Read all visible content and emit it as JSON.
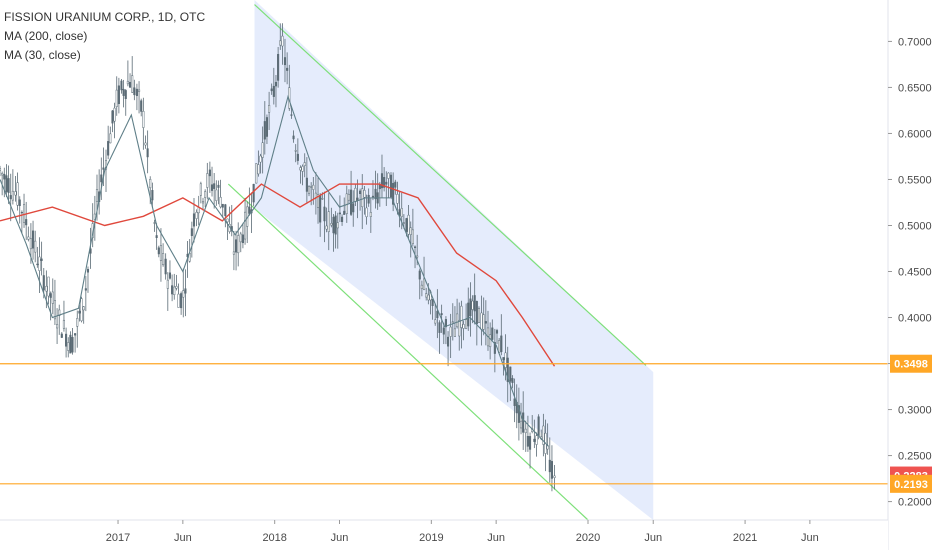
{
  "legend": {
    "title": "FISSION URANIUM CORP., 1D, OTC",
    "ma200": "MA (200, close)",
    "ma30": "MA (30, close)"
  },
  "colors": {
    "candle_up": "#5a6a74",
    "candle_down": "#5a6a74",
    "ma200": "#e0483c",
    "ma30": "#5f7f88",
    "channel_line": "#7ee07a",
    "channel_fill": "#dfe7fb",
    "horizontal": "#ffa726",
    "badge_last": "#ef5350",
    "badge_level": "#ffa726",
    "axis_bg": "#ffffff",
    "axis_line": "#e0e3eb"
  },
  "chart_data": {
    "type": "line",
    "ylim": [
      0.18,
      0.745
    ],
    "xlim": [
      "2016-04-01",
      "2021-11-30"
    ],
    "y_ticks": [
      "0.7000",
      "0.6500",
      "0.6000",
      "0.5500",
      "0.5000",
      "0.4500",
      "0.4000",
      "0.3500",
      "0.3000",
      "0.2500",
      "0.2000"
    ],
    "y_tick_values": [
      0.7,
      0.65,
      0.6,
      0.55,
      0.5,
      0.45,
      0.4,
      0.35,
      0.3,
      0.25,
      0.2
    ],
    "x_ticks": [
      {
        "label": "2017",
        "date": "2017-01-01"
      },
      {
        "label": "Jun",
        "date": "2017-06-01"
      },
      {
        "label": "2018",
        "date": "2018-01-01"
      },
      {
        "label": "Jun",
        "date": "2018-06-01"
      },
      {
        "label": "2019",
        "date": "2019-01-01"
      },
      {
        "label": "Jun",
        "date": "2019-06-01"
      },
      {
        "label": "2020",
        "date": "2020-01-01"
      },
      {
        "label": "Jun",
        "date": "2020-06-01"
      },
      {
        "label": "2021",
        "date": "2021-01-01"
      },
      {
        "label": "Jun",
        "date": "2021-06-01"
      }
    ],
    "price_series": {
      "name": "",
      "x": [
        "2016-04-01",
        "2016-05-15",
        "2016-07-01",
        "2016-08-15",
        "2016-09-15",
        "2016-10-15",
        "2016-11-15",
        "2017-01-01",
        "2017-02-01",
        "2017-03-01",
        "2017-04-01",
        "2017-05-01",
        "2017-06-01",
        "2017-07-01",
        "2017-08-01",
        "2017-09-01",
        "2017-10-01",
        "2017-11-01",
        "2017-12-01",
        "2018-01-01",
        "2018-01-20",
        "2018-02-15",
        "2018-03-15",
        "2018-04-15",
        "2018-05-15",
        "2018-06-15",
        "2018-07-15",
        "2018-08-15",
        "2018-09-15",
        "2018-10-15",
        "2018-11-15",
        "2018-12-15",
        "2019-01-15",
        "2019-02-15",
        "2019-03-15",
        "2019-04-15",
        "2019-05-15",
        "2019-06-15",
        "2019-07-15",
        "2019-08-15",
        "2019-09-15",
        "2019-10-15"
      ],
      "values": [
        0.56,
        0.53,
        0.46,
        0.4,
        0.37,
        0.42,
        0.53,
        0.64,
        0.66,
        0.62,
        0.48,
        0.44,
        0.42,
        0.52,
        0.55,
        0.53,
        0.47,
        0.51,
        0.58,
        0.65,
        0.7,
        0.6,
        0.55,
        0.52,
        0.5,
        0.52,
        0.53,
        0.52,
        0.55,
        0.53,
        0.49,
        0.43,
        0.4,
        0.38,
        0.4,
        0.41,
        0.38,
        0.37,
        0.31,
        0.27,
        0.28,
        0.22
      ]
    },
    "ma200_series": {
      "name": "MA (200, close)",
      "x": [
        "2016-04-01",
        "2016-08-01",
        "2016-12-01",
        "2017-03-01",
        "2017-06-01",
        "2017-09-01",
        "2017-12-01",
        "2018-03-01",
        "2018-06-01",
        "2018-09-01",
        "2018-12-01",
        "2019-03-01",
        "2019-06-01",
        "2019-08-01",
        "2019-10-15"
      ],
      "values": [
        0.505,
        0.52,
        0.5,
        0.51,
        0.53,
        0.505,
        0.545,
        0.52,
        0.545,
        0.545,
        0.53,
        0.47,
        0.44,
        0.4,
        0.347
      ]
    },
    "ma30_series": {
      "name": "MA (30, close)",
      "x": [
        "2016-04-01",
        "2016-06-01",
        "2016-08-01",
        "2016-10-01",
        "2016-12-01",
        "2017-02-01",
        "2017-04-01",
        "2017-06-01",
        "2017-08-01",
        "2017-10-01",
        "2017-12-01",
        "2018-02-01",
        "2018-04-01",
        "2018-06-01",
        "2018-08-01",
        "2018-10-01",
        "2018-12-01",
        "2019-02-01",
        "2019-04-01",
        "2019-06-01",
        "2019-08-01",
        "2019-10-01"
      ],
      "values": [
        0.55,
        0.48,
        0.4,
        0.41,
        0.56,
        0.62,
        0.5,
        0.45,
        0.53,
        0.49,
        0.53,
        0.64,
        0.56,
        0.52,
        0.53,
        0.53,
        0.46,
        0.39,
        0.4,
        0.37,
        0.29,
        0.26
      ]
    },
    "channel": {
      "upper": {
        "x": [
          "2017-11-15",
          "2020-05-15"
        ],
        "y": [
          0.74,
          0.348
        ]
      },
      "lower": {
        "x": [
          "2017-09-15",
          "2020-01-01"
        ],
        "y": [
          0.545,
          0.18
        ]
      },
      "shade_x": [
        "2017-11-15",
        "2020-06-01"
      ]
    },
    "horizontal_levels": [
      0.3498,
      0.2193
    ],
    "badges": [
      {
        "label": "0.3498",
        "value": 0.3498,
        "kind": "level"
      },
      {
        "label": "0.2283",
        "value": 0.2283,
        "kind": "last"
      },
      {
        "label": "0.2193",
        "value": 0.2193,
        "kind": "level"
      }
    ],
    "grid": false,
    "legend_position": "top-left"
  }
}
